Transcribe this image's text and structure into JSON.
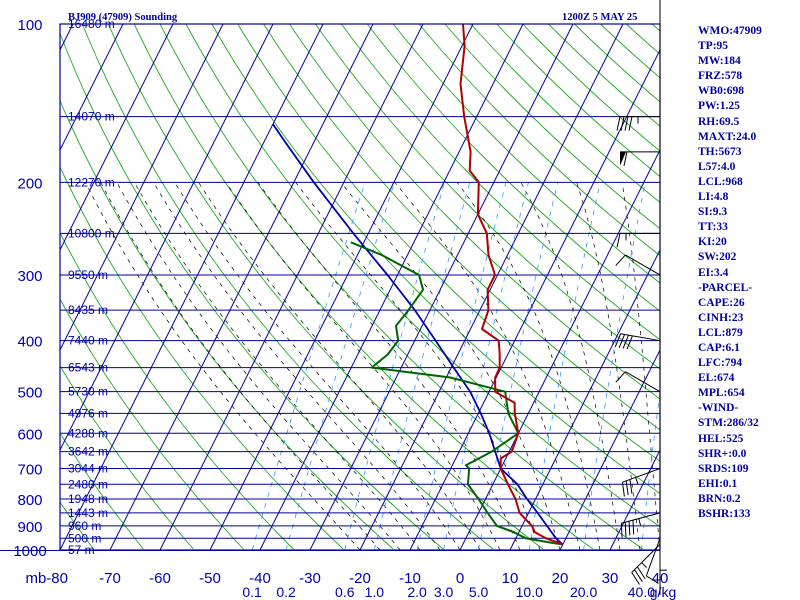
{
  "header": {
    "station": "BJ909 (47909) Sounding",
    "valid_time": "1200Z  5 MAY 25"
  },
  "colors": {
    "background": "#ffffff",
    "pressure_grid": "#00009c",
    "temperature_grid": "#00009c",
    "dry_adiabat": "#22aa22",
    "moist_adiabat": "#000000",
    "mixing_ratio": "#3399ff",
    "temperature": "#b00000",
    "dewpoint": "#006400",
    "parcel": "#0000b0",
    "labels": "#0000b0",
    "index_text": "#0000a0"
  },
  "chart_data": {
    "type": "skew-t log-p sounding",
    "pressure_axis": {
      "unit": "mb",
      "ticks": [
        100,
        200,
        300,
        400,
        500,
        600,
        700,
        800,
        900,
        1000
      ],
      "range": [
        100,
        1000
      ],
      "scale": "log"
    },
    "temperature_axis": {
      "ticks": [
        -80,
        -70,
        -60,
        -50,
        -40,
        -30,
        -20,
        -10,
        0,
        10,
        20,
        30,
        40
      ],
      "tick_labels": [
        "mb-80",
        "-70",
        "-60",
        "-50",
        "-40",
        "-30",
        "-20",
        "-10",
        "0",
        "10",
        "20",
        "30",
        "40"
      ],
      "range": [
        -80,
        40
      ]
    },
    "mixing_ratio_labels": [
      "0.1",
      "0.2",
      "0.6",
      "1.0",
      "2.0",
      "3.0",
      "5.0",
      "10.0",
      "20.0",
      "40.0",
      "g/kg"
    ],
    "height_labels": [
      {
        "p": 100,
        "text": "16480 m"
      },
      {
        "p": 150,
        "text": "14070 m"
      },
      {
        "p": 200,
        "text": "12270 m"
      },
      {
        "p": 250,
        "text": "10800 m"
      },
      {
        "p": 300,
        "text": "9550 m"
      },
      {
        "p": 350,
        "text": "8435 m"
      },
      {
        "p": 400,
        "text": "7440 m"
      },
      {
        "p": 450,
        "text": "6543 m"
      },
      {
        "p": 500,
        "text": "5730 m"
      },
      {
        "p": 550,
        "text": "4976 m"
      },
      {
        "p": 600,
        "text": "4288 m"
      },
      {
        "p": 650,
        "text": "3642 m"
      },
      {
        "p": 700,
        "text": "3044 m"
      },
      {
        "p": 750,
        "text": "2480 m"
      },
      {
        "p": 800,
        "text": "1948 m"
      },
      {
        "p": 850,
        "text": "1443 m"
      },
      {
        "p": 900,
        "text": "960 m"
      },
      {
        "p": 950,
        "text": "500 m"
      },
      {
        "p": 1000,
        "text": "57 m"
      }
    ],
    "temperature": [
      [
        975,
        19.9
      ],
      [
        950,
        16.0
      ],
      [
        925,
        13.2
      ],
      [
        900,
        12.0
      ],
      [
        850,
        8.2
      ],
      [
        800,
        6.0
      ],
      [
        750,
        3.0
      ],
      [
        700,
        0.0
      ],
      [
        670,
        -1.0
      ],
      [
        650,
        0.5
      ],
      [
        600,
        0.0
      ],
      [
        550,
        -2.7
      ],
      [
        525,
        -3.8
      ],
      [
        500,
        -8.8
      ],
      [
        470,
        -10.2
      ],
      [
        450,
        -10.3
      ],
      [
        425,
        -11.6
      ],
      [
        400,
        -13.2
      ],
      [
        380,
        -17.7
      ],
      [
        350,
        -18.3
      ],
      [
        320,
        -20.5
      ],
      [
        300,
        -20.5
      ],
      [
        275,
        -23.8
      ],
      [
        250,
        -26.3
      ],
      [
        230,
        -30.0
      ],
      [
        200,
        -33.0
      ],
      [
        190,
        -36.0
      ],
      [
        175,
        -37.7
      ],
      [
        150,
        -42.5
      ],
      [
        130,
        -46.5
      ],
      [
        110,
        -49.5
      ],
      [
        100,
        -52.0
      ]
    ],
    "dewpoint": [
      [
        975,
        19.8
      ],
      [
        970,
        17.9
      ],
      [
        950,
        12.0
      ],
      [
        925,
        9.0
      ],
      [
        900,
        5.0
      ],
      [
        850,
        1.8
      ],
      [
        800,
        -1.4
      ],
      [
        750,
        -5.0
      ],
      [
        700,
        -6.3
      ],
      [
        690,
        -7.3
      ],
      [
        650,
        -3.5
      ],
      [
        600,
        0.0
      ],
      [
        550,
        -4.0
      ],
      [
        500,
        -6.8
      ],
      [
        470,
        -19.2
      ],
      [
        450,
        -35.9
      ],
      [
        425,
        -34.0
      ],
      [
        400,
        -33.3
      ],
      [
        375,
        -35.2
      ],
      [
        350,
        -34.3
      ],
      [
        320,
        -33.4
      ],
      [
        300,
        -35.7
      ],
      [
        275,
        -45.1
      ],
      [
        260,
        -52.6
      ]
    ],
    "parcel": [
      [
        975,
        19.9
      ],
      [
        950,
        18.0
      ],
      [
        900,
        15.0
      ],
      [
        850,
        11.8
      ],
      [
        800,
        8.3
      ],
      [
        750,
        4.9
      ],
      [
        700,
        0.0
      ],
      [
        650,
        -2.8
      ],
      [
        600,
        -5.8
      ],
      [
        550,
        -9.5
      ],
      [
        500,
        -13.8
      ],
      [
        450,
        -19.5
      ],
      [
        400,
        -25.8
      ],
      [
        350,
        -33.0
      ],
      [
        300,
        -42.0
      ],
      [
        250,
        -53.0
      ],
      [
        200,
        -66.0
      ],
      [
        170,
        -75.0
      ],
      [
        155,
        -80.0
      ]
    ],
    "wind_barbs": [
      {
        "p": 100,
        "dir": 0,
        "spd": 5
      },
      {
        "p": 150,
        "dir": 270,
        "spd": 45
      },
      {
        "p": 175,
        "dir": 270,
        "spd": 60
      },
      {
        "p": 250,
        "dir": 270,
        "spd": 15
      },
      {
        "p": 300,
        "dir": 300,
        "spd": 10
      },
      {
        "p": 400,
        "dir": 280,
        "spd": 40
      },
      {
        "p": 500,
        "dir": 300,
        "spd": 10
      },
      {
        "p": 700,
        "dir": 250,
        "spd": 35
      },
      {
        "p": 850,
        "dir": 255,
        "spd": 45
      },
      {
        "p": 925,
        "dir": 180,
        "spd": 5
      },
      {
        "p": 950,
        "dir": 200,
        "spd": 10
      },
      {
        "p": 975,
        "dir": 225,
        "spd": 35
      }
    ]
  },
  "indices": [
    "WMO:47909",
    "TP:95",
    "MW:184",
    "FRZ:578",
    "WB0:698",
    "PW:1.25",
    "RH:69.5",
    "MAXT:24.0",
    "TH:5673",
    "L57:4.0",
    "LCL:968",
    "LI:4.8",
    "SI:9.3",
    "TT:33",
    "KI:20",
    "SW:202",
    "EI:3.4",
    "-PARCEL-",
    "CAPE:26",
    "CINH:23",
    "LCL:879",
    "CAP:6.1",
    "LFC:794",
    "EL:674",
    "MPL:654",
    "-WIND-",
    "STM:286/32",
    "HEL:525",
    "SHR+:0.0",
    "SRDS:109",
    "EHI:0.1",
    "BRN:0.2",
    "BSHR:133"
  ]
}
